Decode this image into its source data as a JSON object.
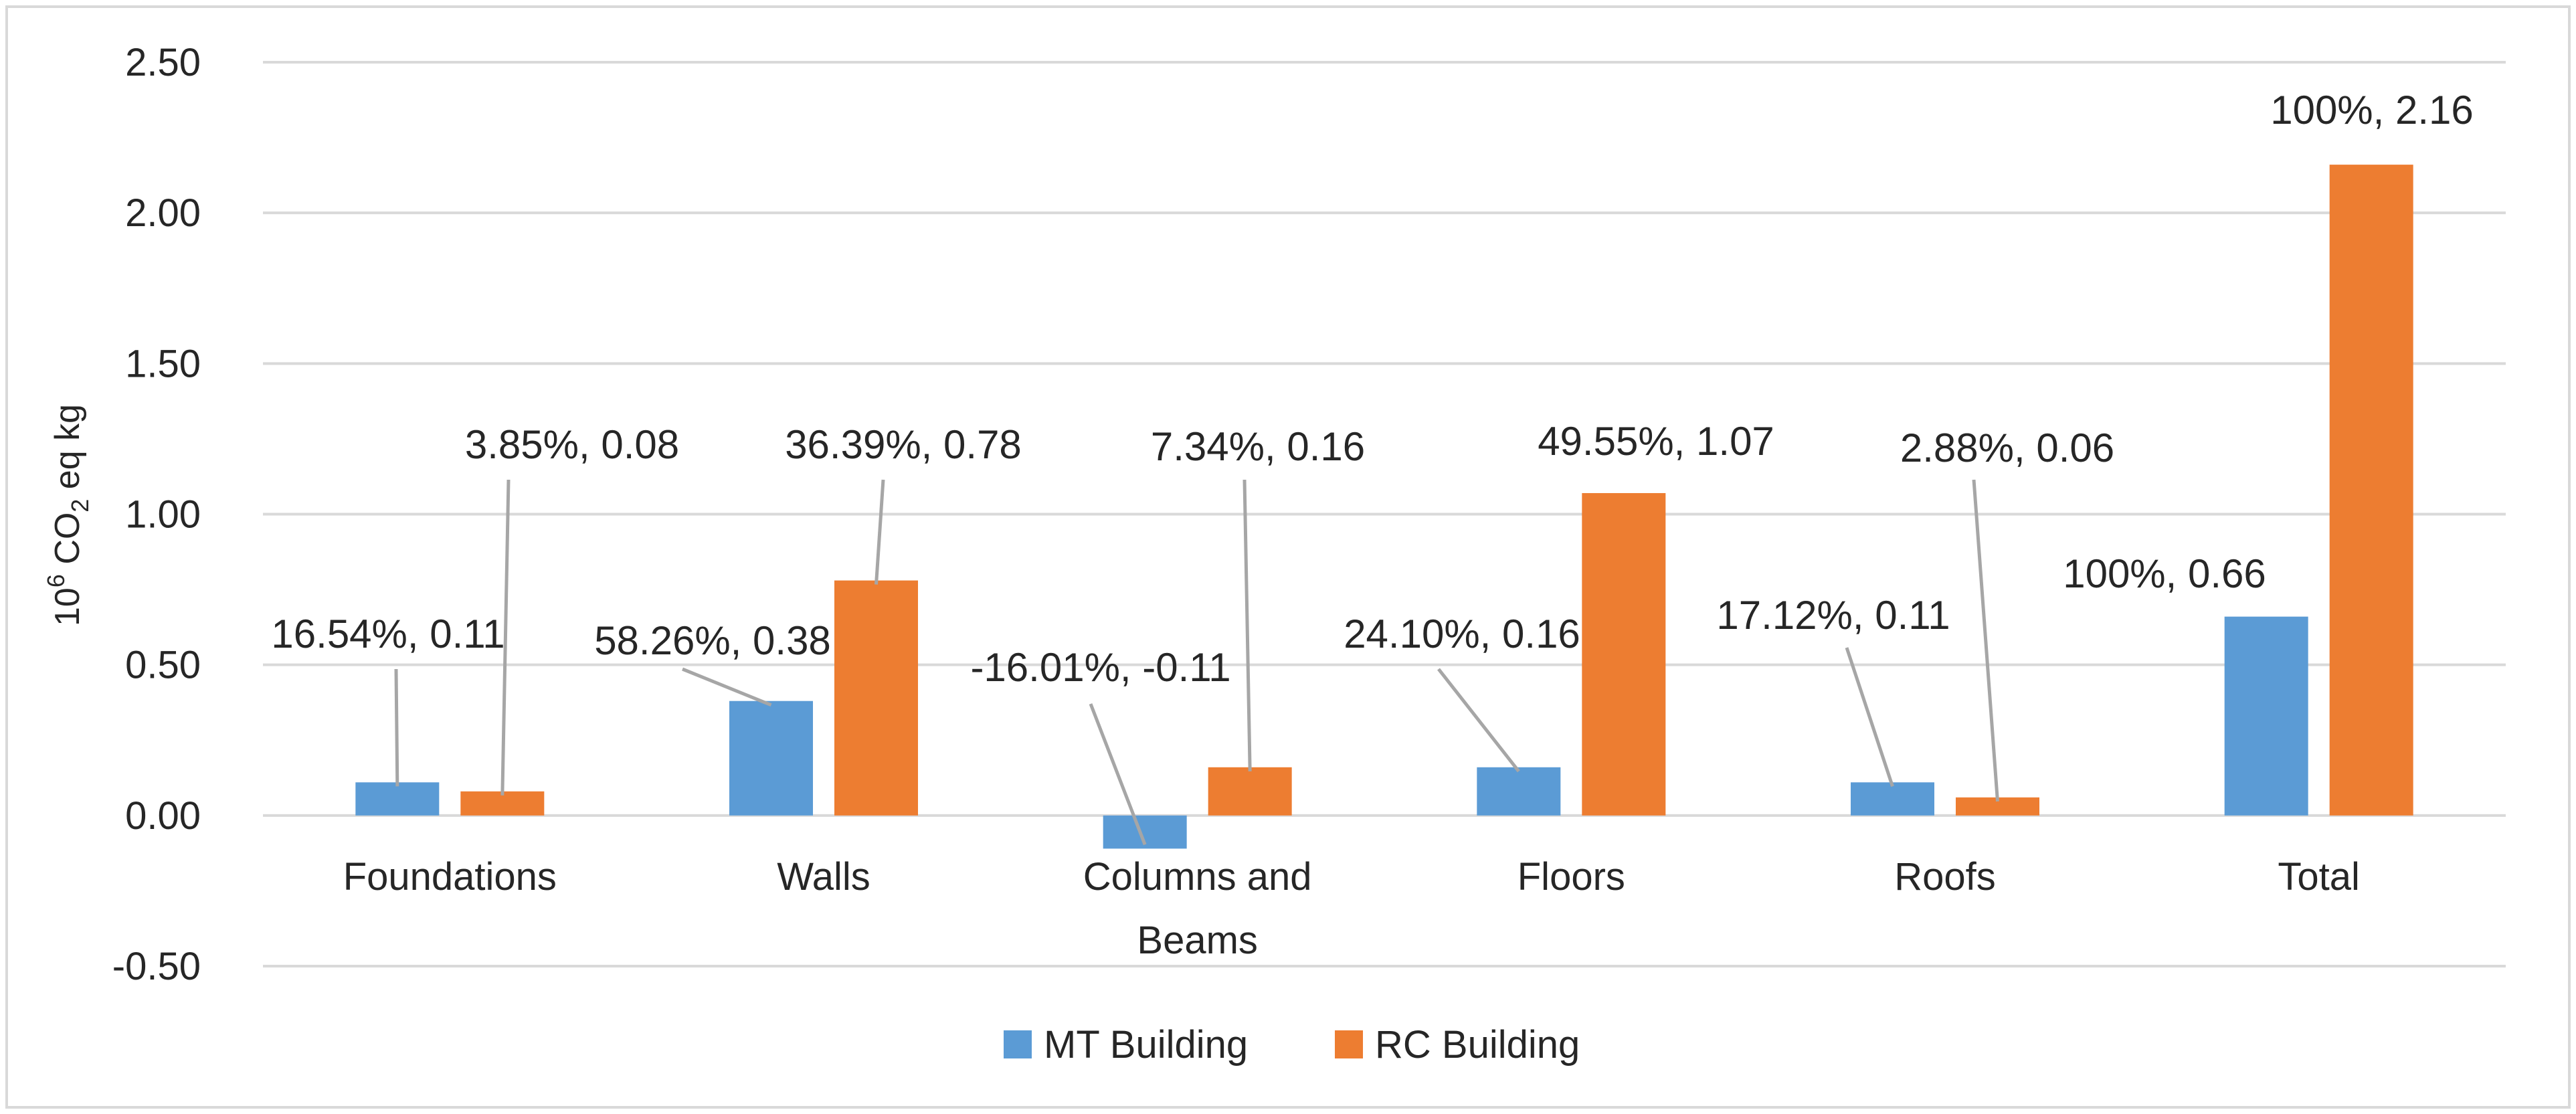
{
  "chart_data": {
    "type": "bar",
    "title": "",
    "xlabel": "",
    "ylabel": {
      "prefix": "10",
      "sup": "6",
      "mid": " CO",
      "sub": "2",
      "suffix": " eq kg"
    },
    "categories": [
      [
        "Foundations"
      ],
      [
        "Walls"
      ],
      [
        "Columns and",
        "Beams"
      ],
      [
        "Floors"
      ],
      [
        "Roofs"
      ],
      [
        "Total"
      ]
    ],
    "ylim": [
      -0.5,
      2.5
    ],
    "yticks": [
      2.5,
      2.0,
      1.5,
      1.0,
      0.5,
      0.0,
      -0.5
    ],
    "ytick_labels": [
      "2.50",
      "2.00",
      "1.50",
      "1.00",
      "0.50",
      "0.00",
      "-0.50"
    ],
    "grid": true,
    "legend_position": "bottom",
    "series": [
      {
        "name": "MT Building",
        "color": "#5B9BD5",
        "values": [
          0.11,
          0.38,
          -0.11,
          0.16,
          0.11,
          0.66
        ],
        "labels": [
          "16.54%, 0.11",
          "58.26%, 0.38",
          "-16.01%, -0.11",
          "24.10%, 0.16",
          "17.12%, 0.11",
          "100%, 0.66"
        ]
      },
      {
        "name": "RC Building",
        "color": "#ED7D31",
        "values": [
          0.08,
          0.78,
          0.16,
          1.07,
          0.06,
          2.16
        ],
        "labels": [
          "3.85%, 0.08",
          "36.39%, 0.78",
          "7.34%, 0.16",
          "49.55%, 1.07",
          "2.88%, 0.06",
          "100%, 2.16"
        ]
      }
    ],
    "colors": {
      "grid": "#D9D9D9",
      "text": "#262626",
      "leader": "#A6A6A6",
      "border": "#D9D9D9"
    }
  }
}
